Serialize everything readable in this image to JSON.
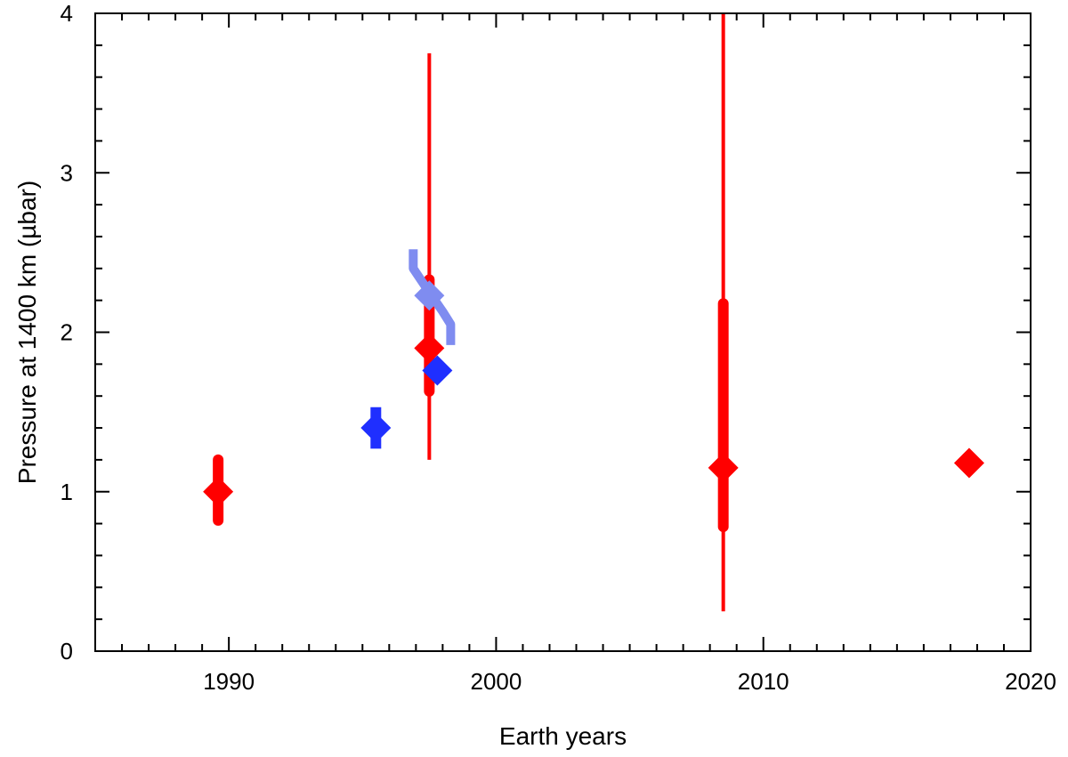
{
  "chart_data": {
    "type": "scatter",
    "title": "",
    "xlabel": "Earth years",
    "ylabel": "Pressure at 1400 km (µbar)",
    "xlim": [
      1985,
      2020
    ],
    "ylim": [
      0,
      4
    ],
    "x_major_ticks": [
      1990,
      2000,
      2010,
      2020
    ],
    "x_tick_labels": [
      "1990",
      "2000",
      "2010",
      "2020"
    ],
    "x_minor_step": 1,
    "y_major_ticks": [
      0,
      1,
      2,
      3,
      4
    ],
    "y_tick_labels": [
      "0",
      "1",
      "2",
      "3",
      "4"
    ],
    "y_minor_step": 0.2,
    "grid": false,
    "legend": "none",
    "colors": {
      "red": "#ff0000",
      "blue": "#1f2fff",
      "light_blue": "#7f8cf0"
    },
    "series": [
      {
        "color": "red",
        "points": [
          {
            "x": 1989.6,
            "y": 1.0,
            "err_thick": [
              0.82,
              1.2
            ]
          },
          {
            "x": 1997.5,
            "y": 1.9,
            "err_thick": [
              1.63,
              2.33
            ],
            "err_thin": [
              1.2,
              3.75
            ]
          },
          {
            "x": 2008.5,
            "y": 1.15,
            "err_thick": [
              0.78,
              2.18
            ],
            "err_thin": [
              0.25,
              4.0
            ]
          },
          {
            "x": 2017.7,
            "y": 1.18
          }
        ]
      },
      {
        "color": "blue",
        "points": [
          {
            "x": 1995.5,
            "y": 1.4,
            "err_thick": [
              1.27,
              1.53
            ]
          },
          {
            "x": 1997.8,
            "y": 1.76
          }
        ]
      },
      {
        "color": "light_blue",
        "points": [
          {
            "x": 1997.5,
            "y": 2.23
          }
        ],
        "curve": [
          {
            "x": 1996.9,
            "y": 2.52
          },
          {
            "x": 1996.9,
            "y": 2.4
          },
          {
            "x": 1997.3,
            "y": 2.3
          },
          {
            "x": 1998.0,
            "y": 2.13
          },
          {
            "x": 1998.3,
            "y": 2.05
          },
          {
            "x": 1998.3,
            "y": 1.92
          }
        ]
      }
    ]
  }
}
